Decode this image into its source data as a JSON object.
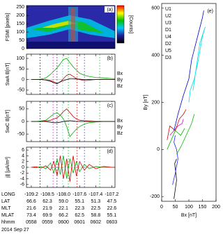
{
  "chart_data": [
    {
      "type": "heatmap",
      "panel": "(a)",
      "ylabel": "FSMI [pixels]",
      "colorbar_label": "[Counts]",
      "ylim": [
        0,
        260
      ],
      "yticks": [
        0,
        50,
        100,
        150,
        200,
        250
      ]
    },
    {
      "type": "line",
      "panel": "(b)",
      "ylabel": "SwA B[nT]",
      "ylim": [
        -70,
        120
      ],
      "yticks": [
        -50,
        0,
        50,
        100
      ],
      "x": [
        0,
        0.3,
        0.6,
        0.9,
        1.2,
        1.4,
        1.6,
        1.8,
        2.0,
        2.2,
        2.4,
        2.6,
        2.8,
        3.0,
        3.3,
        3.6,
        4.0,
        4.5,
        5.0,
        5.2
      ],
      "series": [
        {
          "name": "Bx",
          "color": "#d00000",
          "values": [
            0,
            0,
            1,
            -2,
            -5,
            -10,
            -18,
            -12,
            5,
            20,
            25,
            15,
            5,
            0,
            -5,
            -3,
            0,
            0,
            0,
            0
          ]
        },
        {
          "name": "By",
          "color": "#00b000",
          "values": [
            0,
            0,
            2,
            8,
            25,
            40,
            55,
            75,
            95,
            100,
            80,
            60,
            45,
            30,
            20,
            15,
            10,
            8,
            5,
            5
          ]
        },
        {
          "name": "Bz",
          "color": "#000000",
          "values": [
            0,
            0,
            0,
            -2,
            -8,
            -15,
            -20,
            -10,
            -5,
            0,
            5,
            5,
            3,
            2,
            0,
            0,
            0,
            0,
            0,
            0
          ]
        }
      ]
    },
    {
      "type": "line",
      "panel": "(c)",
      "ylabel": "SwC B[nT]",
      "ylim": [
        -80,
        80
      ],
      "yticks": [
        -50,
        0,
        50
      ],
      "x": [
        0,
        0.3,
        0.6,
        0.9,
        1.2,
        1.4,
        1.6,
        1.8,
        2.0,
        2.2,
        2.4,
        2.6,
        2.8,
        3.0,
        3.3,
        3.6,
        4.0,
        4.5,
        5.0,
        5.2
      ],
      "series": [
        {
          "name": "Bx",
          "color": "#d00000",
          "values": [
            0,
            0,
            0,
            2,
            5,
            10,
            15,
            25,
            40,
            50,
            35,
            20,
            10,
            5,
            3,
            2,
            0,
            0,
            0,
            0
          ]
        },
        {
          "name": "By",
          "color": "#00b000",
          "values": [
            0,
            0,
            2,
            5,
            20,
            30,
            35,
            25,
            10,
            -20,
            -60,
            -45,
            -30,
            -20,
            -10,
            -5,
            -2,
            0,
            0,
            0
          ]
        },
        {
          "name": "Bz",
          "color": "#000000",
          "values": [
            0,
            0,
            0,
            0,
            -3,
            -5,
            -5,
            -3,
            0,
            2,
            3,
            2,
            0,
            0,
            0,
            0,
            0,
            0,
            0,
            0
          ]
        }
      ]
    },
    {
      "type": "line",
      "panel": "(d)",
      "ylabel": "j∥ [μA/m²]",
      "ylim": [
        -7,
        7
      ],
      "yticks": [
        -6,
        -4,
        -2,
        0,
        2,
        4,
        6
      ],
      "x": [
        0,
        0.3,
        0.6,
        0.9,
        1.2,
        1.4,
        1.6,
        1.8,
        2.0,
        2.2,
        2.4,
        2.6,
        2.8,
        3.0,
        3.3,
        3.6,
        4.0,
        4.5,
        5.0,
        5.2
      ],
      "series": [
        {
          "color": "#00b000",
          "values": [
            0,
            -0.2,
            0.3,
            -0.5,
            1.5,
            -2,
            3,
            -2.5,
            4,
            -4,
            3,
            -2,
            2,
            -1.5,
            1,
            -0.5,
            0.3,
            0,
            0,
            0
          ]
        },
        {
          "color": "#d00000",
          "values": [
            0,
            0.2,
            -0.3,
            0.5,
            -1,
            2,
            -3,
            4,
            -4,
            3,
            -5,
            4,
            -3,
            2,
            -1,
            1,
            -0.5,
            0.3,
            0,
            0
          ]
        }
      ]
    },
    {
      "type": "scatter-line",
      "panel": "(e)",
      "xlabel": "Bx [nT]",
      "ylabel": "By [nT]",
      "xlim": [
        0,
        200
      ],
      "xticks": [
        0,
        50,
        100,
        150,
        200
      ],
      "ylim": [
        -220,
        620
      ],
      "yticks": [
        -200,
        0,
        200,
        400,
        600
      ],
      "series": [
        {
          "name": "U1",
          "color": "#000000",
          "x": [
            45,
            50,
            55,
            52,
            48,
            55
          ],
          "values": [
            -210,
            -170,
            -130,
            -100,
            -60,
            -40
          ]
        },
        {
          "name": "U2",
          "color": "#e000e0",
          "x": [
            30,
            45,
            60,
            75,
            80
          ],
          "values": [
            60,
            80,
            100,
            110,
            130
          ]
        },
        {
          "name": "U3",
          "color": "#0000cc",
          "x": [
            45,
            60,
            80,
            100,
            110,
            130,
            150,
            155
          ],
          "values": [
            80,
            150,
            230,
            300,
            380,
            470,
            560,
            590
          ]
        },
        {
          "name": "D1",
          "color": "#00e0e0",
          "x": [
            100,
            105,
            120,
            135,
            150,
            160,
            140,
            115
          ],
          "values": [
            200,
            250,
            300,
            380,
            480,
            520,
            450,
            250
          ]
        },
        {
          "name": "U4",
          "color": "#00b000",
          "x": [
            20,
            35,
            50,
            70,
            85
          ],
          "values": [
            0,
            40,
            80,
            60,
            90
          ]
        },
        {
          "name": "D2",
          "color": "#d00000",
          "x": [
            20,
            30,
            50,
            65,
            80,
            90
          ],
          "values": [
            40,
            100,
            80,
            130,
            150,
            170
          ]
        },
        {
          "name": "U5",
          "color": "#2020ff",
          "x": [
            40,
            50,
            60,
            55,
            45,
            50
          ],
          "values": [
            -150,
            -100,
            -40,
            0,
            30,
            60
          ]
        },
        {
          "name": "D3",
          "color": "#00c000",
          "x": [
            55,
            70,
            90,
            110,
            120
          ],
          "values": [
            -20,
            10,
            60,
            110,
            150
          ]
        }
      ]
    }
  ],
  "x_axis": {
    "xlim": [
      -0.3,
      5.2
    ],
    "xticks": [
      0,
      1,
      2,
      3,
      4,
      5
    ],
    "rows": [
      {
        "name": "LONG",
        "labels": [
          "-109.2",
          "-108.5",
          "-108.0",
          "-107.6",
          "-107.4",
          "-107.2"
        ]
      },
      {
        "name": "LAT",
        "labels": [
          "66.6",
          "62.3",
          "59.0",
          "55.1",
          "51.3",
          "47.5"
        ]
      },
      {
        "name": "MLT",
        "labels": [
          "21.6",
          "21.9",
          "22.1",
          "22.3",
          "22.5",
          "22.6"
        ]
      },
      {
        "name": "MLAT",
        "labels": [
          "73.4",
          "69.9",
          "66.2",
          "62.5",
          "58.8",
          "55.1"
        ]
      },
      {
        "name": "hhmm",
        "labels": [
          "0558",
          "0559",
          "0600",
          "0601",
          "0602",
          "0603"
        ]
      }
    ],
    "date": "2014 Sep 27"
  },
  "event_lines": [
    {
      "x": 0.55,
      "color": "#000000"
    },
    {
      "x": 1.35,
      "color": "#e000e0"
    },
    {
      "x": 1.6,
      "color": "#0000cc"
    },
    {
      "x": 1.95,
      "color": "#00e0e0"
    },
    {
      "x": 2.3,
      "color": "#00b000"
    },
    {
      "x": 2.85,
      "color": "#d00000"
    },
    {
      "x": 3.3,
      "color": "#2020ff"
    },
    {
      "x": 4.25,
      "color": "#00c000"
    }
  ]
}
